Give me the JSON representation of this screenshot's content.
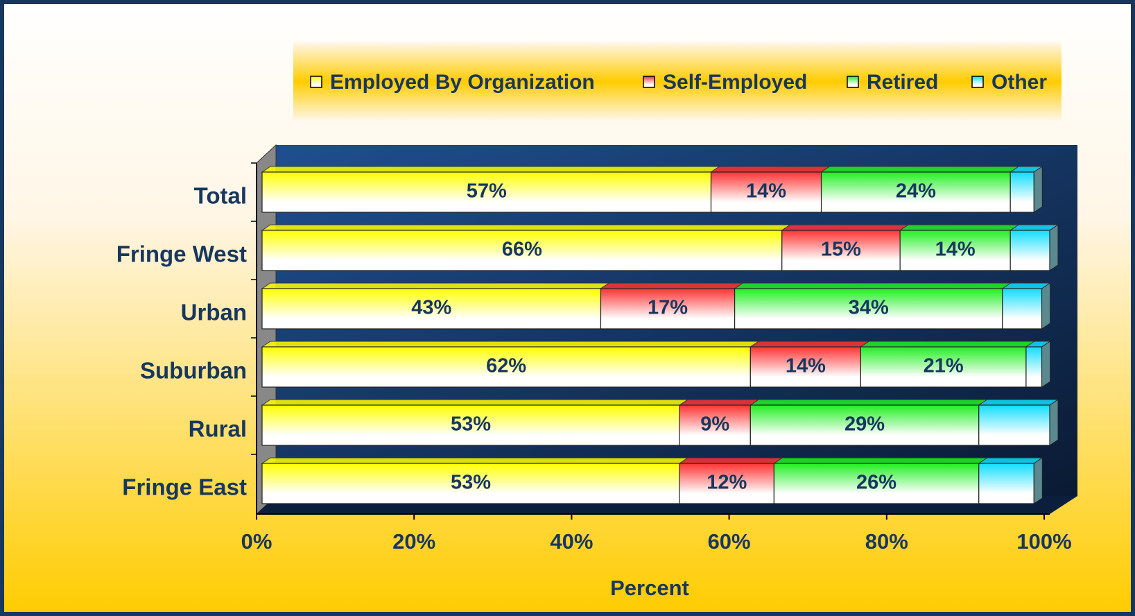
{
  "chart_data": {
    "type": "stacked_bar_horizontal",
    "categories": [
      "Total",
      "Fringe West",
      "Urban",
      "Suburban",
      "Rural",
      "Fringe East"
    ],
    "series": [
      {
        "name": "Employed By Organization",
        "color": "#ffff00",
        "values": [
          57,
          66,
          43,
          62,
          53,
          53
        ],
        "value_labels": [
          "57%",
          "66%",
          "43%",
          "62%",
          "53%",
          "53%"
        ]
      },
      {
        "name": "Self-Employed",
        "color": "#ff3333",
        "values": [
          14,
          15,
          17,
          14,
          9,
          12
        ],
        "value_labels": [
          "14%",
          "15%",
          "17%",
          "14%",
          "9%",
          "12%"
        ]
      },
      {
        "name": "Retired",
        "color": "#22ee22",
        "values": [
          24,
          14,
          34,
          21,
          29,
          26
        ],
        "value_labels": [
          "24%",
          "14%",
          "34%",
          "21%",
          "29%",
          "26%"
        ]
      },
      {
        "name": "Other",
        "color": "#11ddff",
        "values": [
          3,
          5,
          5,
          2,
          9,
          7
        ]
      }
    ],
    "x_label": "Percent",
    "xlim": [
      0,
      100
    ],
    "xticks": [
      {
        "value": 0,
        "label": "0%"
      },
      {
        "value": 20,
        "label": "20%"
      },
      {
        "value": 40,
        "label": "40%"
      },
      {
        "value": 60,
        "label": "60%"
      },
      {
        "value": 80,
        "label": "80%"
      },
      {
        "value": 100,
        "label": "100%"
      }
    ],
    "grid": false,
    "legend": "top"
  }
}
